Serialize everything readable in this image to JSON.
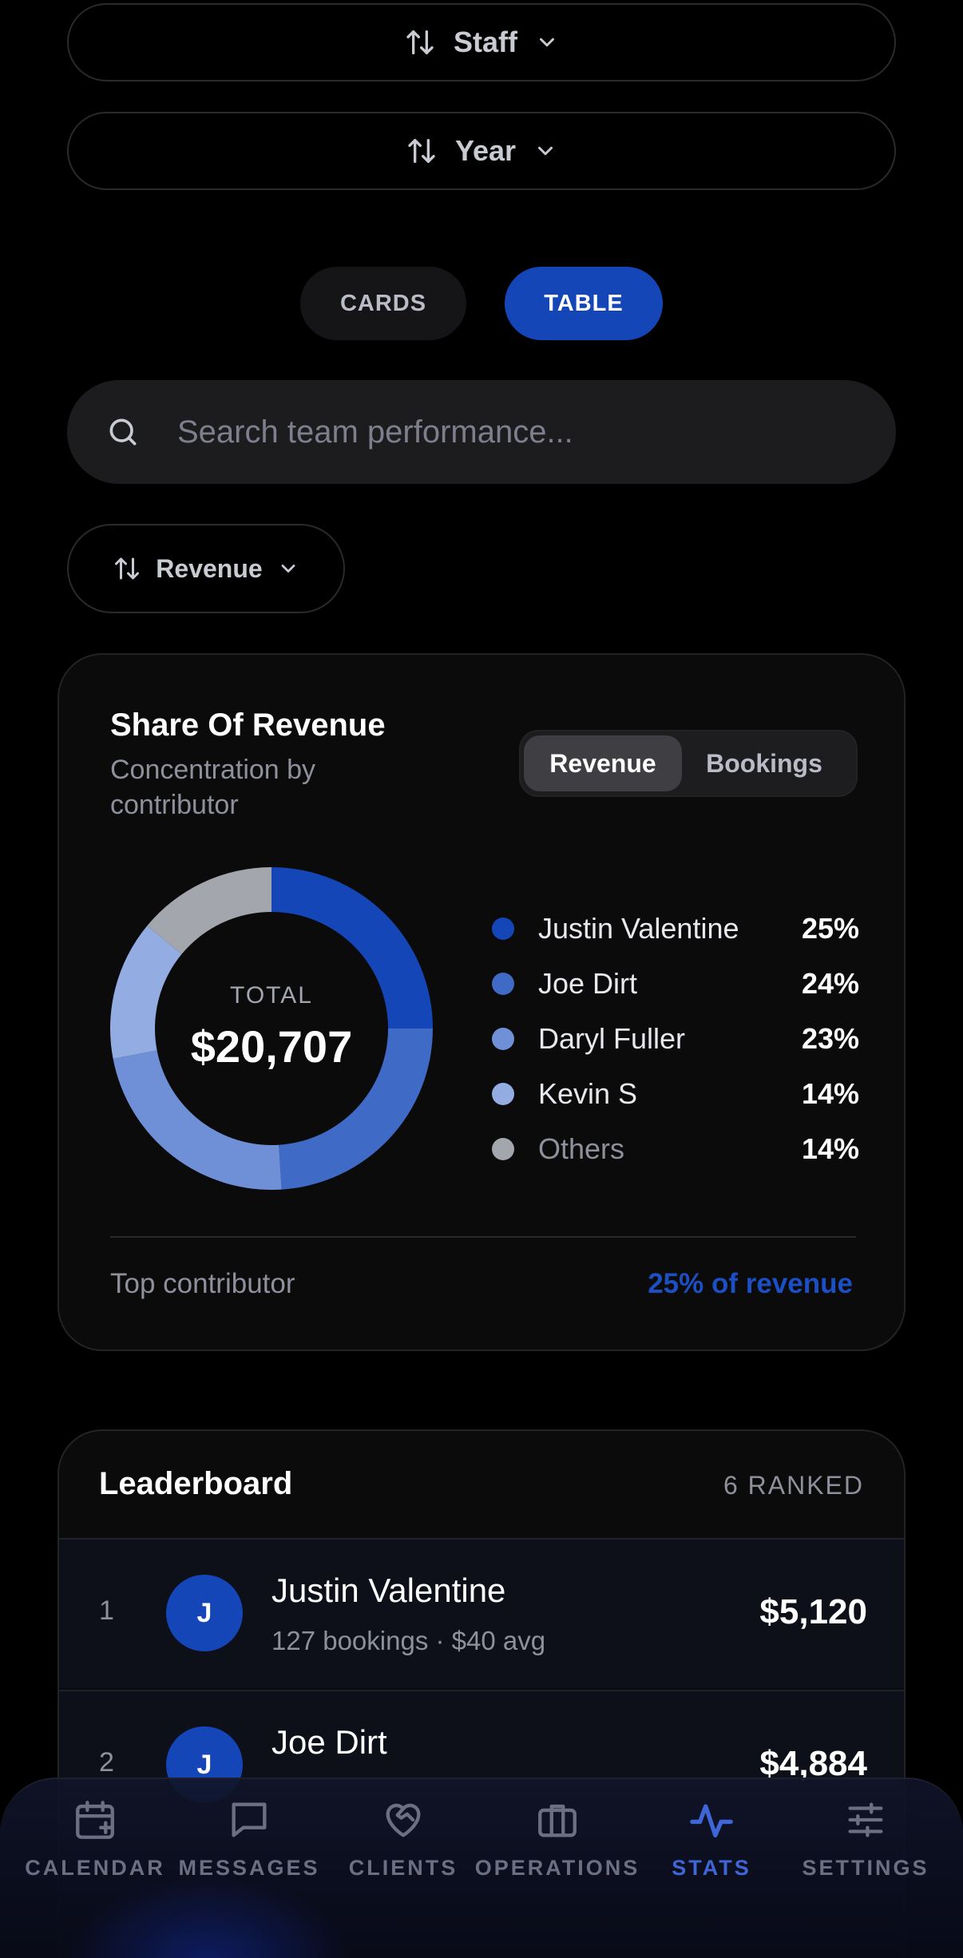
{
  "filters": {
    "staff_label": "Staff",
    "year_label": "Year"
  },
  "view_toggle": {
    "cards_label": "CARDS",
    "table_label": "TABLE",
    "active": "TABLE"
  },
  "search": {
    "placeholder": "Search team performance...",
    "value": ""
  },
  "sort": {
    "label": "Revenue"
  },
  "share_card": {
    "title": "Share Of Revenue",
    "subtitle": "Concentration by contributor",
    "toggle": {
      "revenue_label": "Revenue",
      "bookings_label": "Bookings",
      "active": "Revenue"
    },
    "total_label": "TOTAL",
    "total_value": "$20,707",
    "footer_left": "Top contributor",
    "footer_right": "25% of revenue",
    "accent_color": "#1c4fc4"
  },
  "chart_data": {
    "type": "pie",
    "style": "donut",
    "categories": [
      "Justin Valentine",
      "Joe Dirt",
      "Daryl Fuller",
      "Kevin S",
      "Others"
    ],
    "values": [
      25,
      24,
      23,
      14,
      14
    ],
    "value_labels": [
      "25%",
      "24%",
      "23%",
      "14%",
      "14%"
    ],
    "colors": [
      "#1446b8",
      "#3f6ac6",
      "#6f90d6",
      "#93ade3",
      "#a3a6ad"
    ],
    "legend": "right"
  },
  "leaderboard": {
    "title": "Leaderboard",
    "count_label": "6 RANKED",
    "rows": [
      {
        "rank": "1",
        "initial": "J",
        "name": "Justin Valentine",
        "meta": "127 bookings · $40 avg",
        "amount": "$5,120"
      },
      {
        "rank": "2",
        "initial": "J",
        "name": "Joe Dirt",
        "meta": "",
        "amount": "$4,884"
      }
    ]
  },
  "tabbar": {
    "items": [
      {
        "label": "CALENDAR",
        "icon": "calendar-plus-icon"
      },
      {
        "label": "MESSAGES",
        "icon": "chat-bubble-icon"
      },
      {
        "label": "CLIENTS",
        "icon": "heart-handshake-icon"
      },
      {
        "label": "OPERATIONS",
        "icon": "briefcase-icon"
      },
      {
        "label": "STATS",
        "icon": "activity-icon"
      },
      {
        "label": "SETTINGS",
        "icon": "sliders-icon"
      }
    ],
    "active": "STATS",
    "active_color": "#3f66d6"
  }
}
